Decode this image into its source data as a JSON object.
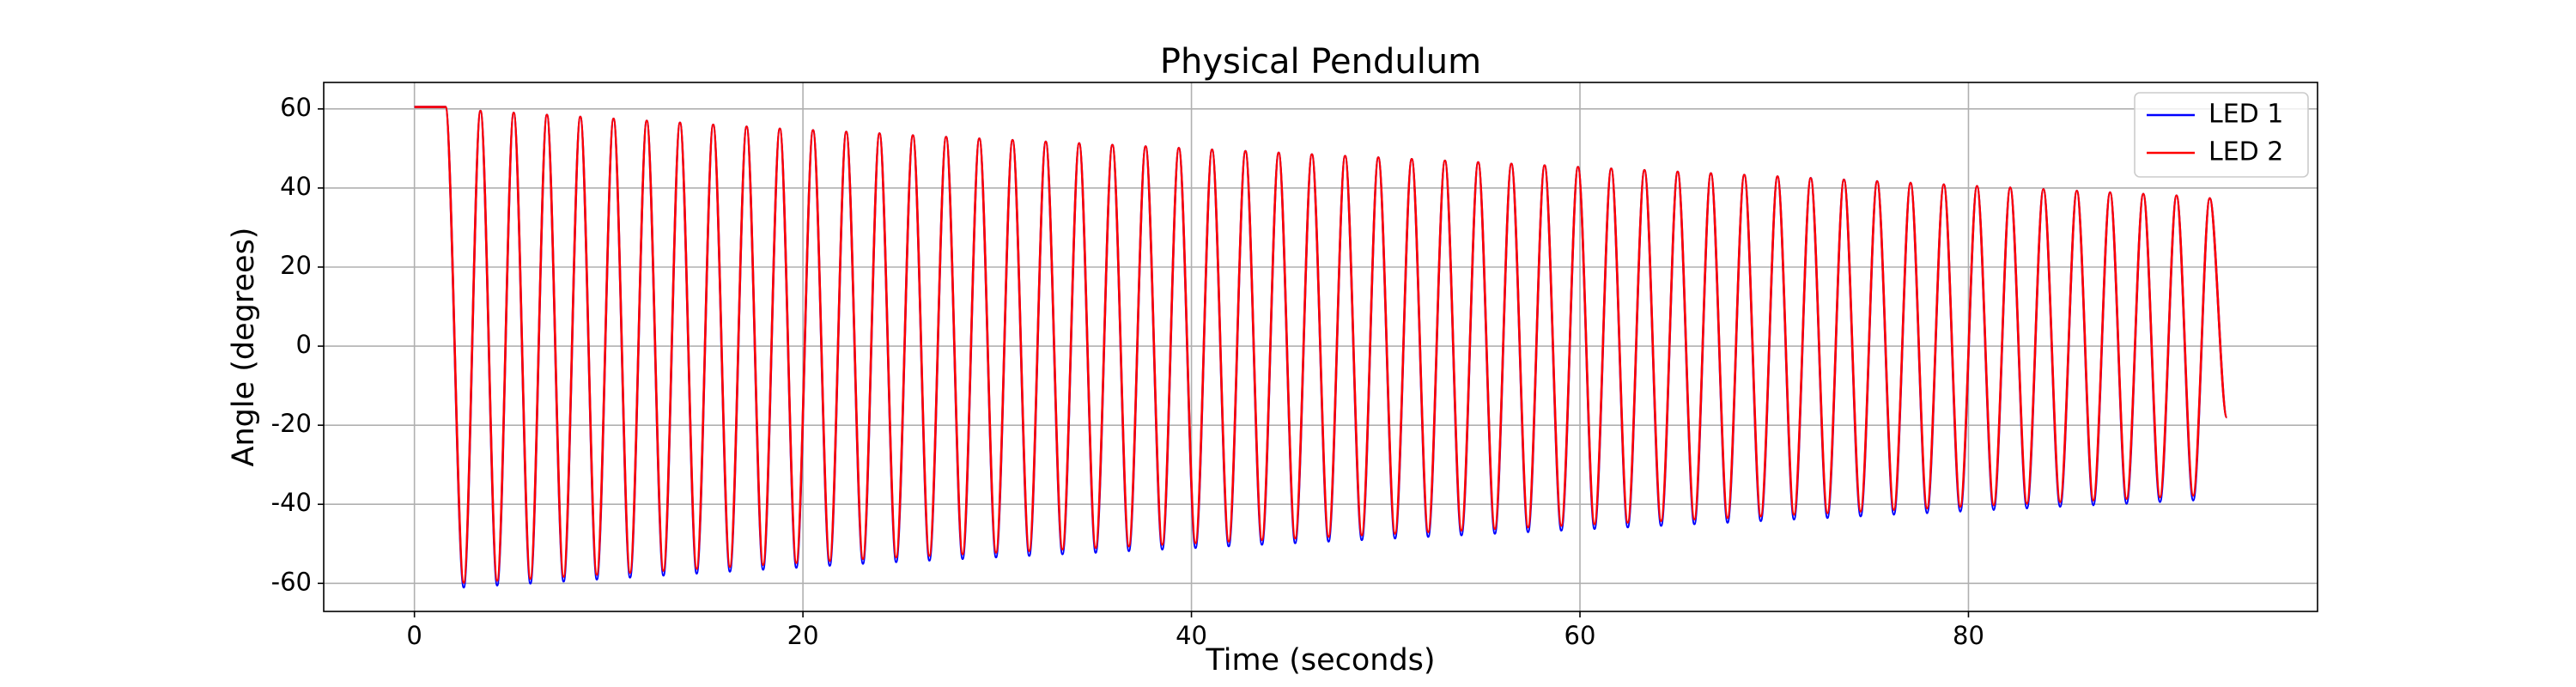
{
  "chart_data": {
    "type": "line",
    "title": "Physical Pendulum",
    "x_label": "Time (seconds)",
    "y_label": "Angle (degrees)",
    "x": [
      0,
      1.6,
      2.54,
      3.4,
      4.26,
      5.11,
      5.97,
      6.82,
      7.68,
      8.54,
      9.39,
      10.25,
      11.1,
      11.96,
      12.82,
      13.67,
      14.53,
      15.38,
      16.24,
      17.1,
      17.95,
      18.81,
      19.66,
      20.52,
      21.38,
      22.23,
      23.09,
      23.94,
      24.8,
      25.66,
      26.51,
      27.37,
      28.22,
      29.08,
      29.94,
      30.79,
      31.65,
      32.5,
      33.36,
      34.22,
      35.07,
      35.93,
      36.78,
      37.64,
      38.5,
      39.35,
      40.21,
      41.06,
      41.92,
      42.78,
      43.63,
      44.49,
      45.34,
      46.2,
      47.06,
      47.91,
      48.77,
      49.62,
      50.48,
      51.34,
      52.19,
      53.05,
      53.9,
      54.76,
      55.62,
      56.47,
      57.33,
      58.18,
      59.04,
      59.9,
      60.75,
      61.61,
      62.46,
      63.32,
      64.18,
      65.03,
      65.89,
      66.74,
      67.6,
      68.46,
      69.31,
      70.17,
      71.02,
      71.88,
      72.74,
      73.59,
      74.45,
      75.3,
      76.16,
      77.02,
      77.87,
      78.73,
      79.58,
      80.44,
      81.3,
      82.15,
      83.01,
      83.86,
      84.72,
      85.58,
      86.43,
      87.29,
      88.14,
      89.0,
      89.86,
      90.71,
      91.57,
      92.42,
      93.3
    ],
    "series": [
      {
        "name": "LED 1",
        "color": "#0000ff",
        "values": [
          60.5,
          60.5,
          -61.0,
          59.5,
          -60.5,
          59.0,
          -60.0,
          58.5,
          -59.5,
          58.0,
          -59.0,
          57.5,
          -58.5,
          57.0,
          -58.0,
          56.5,
          -57.5,
          56.0,
          -57.0,
          55.5,
          -56.5,
          55.0,
          -56.0,
          54.6,
          -55.5,
          54.2,
          -55.0,
          53.8,
          -54.6,
          53.3,
          -54.2,
          52.9,
          -53.8,
          52.5,
          -53.4,
          52.1,
          -53.0,
          51.7,
          -52.6,
          51.3,
          -52.2,
          50.9,
          -51.8,
          50.5,
          -51.4,
          50.1,
          -51.0,
          49.7,
          -50.6,
          49.3,
          -50.2,
          48.9,
          -49.8,
          48.5,
          -49.4,
          48.1,
          -49.0,
          47.7,
          -48.6,
          47.3,
          -48.2,
          46.9,
          -47.8,
          46.5,
          -47.4,
          46.1,
          -47.0,
          45.7,
          -46.6,
          45.3,
          -46.2,
          44.9,
          -45.8,
          44.5,
          -45.4,
          44.1,
          -45.0,
          43.7,
          -44.6,
          43.3,
          -44.2,
          42.9,
          -43.8,
          42.5,
          -43.4,
          42.1,
          -43.0,
          41.7,
          -42.6,
          41.3,
          -42.2,
          40.9,
          -41.8,
          40.5,
          -41.4,
          40.1,
          -41.0,
          39.7,
          -40.6,
          39.3,
          -40.2,
          38.9,
          -39.8,
          38.5,
          -39.4,
          38.1,
          -39.0,
          37.4,
          -18
        ]
      },
      {
        "name": "LED 2",
        "color": "#ff0000",
        "values": [
          60.5,
          60.5,
          -59.8,
          59.5,
          -59.3,
          59.0,
          -58.8,
          58.5,
          -58.3,
          58.0,
          -57.8,
          57.5,
          -57.3,
          57.0,
          -56.8,
          56.5,
          -56.3,
          56.0,
          -55.8,
          55.5,
          -55.3,
          55.0,
          -54.8,
          54.6,
          -54.3,
          54.2,
          -53.8,
          53.8,
          -53.4,
          53.3,
          -53.0,
          52.9,
          -52.6,
          52.5,
          -52.2,
          52.1,
          -51.8,
          51.7,
          -51.4,
          51.3,
          -51.0,
          50.9,
          -50.6,
          50.5,
          -50.2,
          50.1,
          -49.8,
          49.7,
          -49.4,
          49.3,
          -49.0,
          48.9,
          -48.6,
          48.5,
          -48.2,
          48.1,
          -47.8,
          47.7,
          -47.4,
          47.3,
          -47.0,
          46.9,
          -46.6,
          46.5,
          -46.2,
          46.1,
          -45.8,
          45.7,
          -45.4,
          45.3,
          -45.0,
          44.9,
          -44.6,
          44.5,
          -44.2,
          44.1,
          -43.8,
          43.7,
          -43.4,
          43.3,
          -43.0,
          42.9,
          -42.6,
          42.5,
          -42.2,
          42.1,
          -41.8,
          41.7,
          -41.4,
          41.3,
          -41.0,
          40.9,
          -40.6,
          40.5,
          -40.2,
          40.1,
          -39.8,
          39.7,
          -39.4,
          39.3,
          -39.0,
          38.9,
          -38.6,
          38.5,
          -38.2,
          38.1,
          -37.8,
          37.4,
          -18
        ]
      }
    ],
    "xlim": [
      -4.67,
      97.97
    ],
    "xticks": [
      0,
      20,
      40,
      60,
      80
    ],
    "ylim": [
      -67.1,
      66.7
    ],
    "yticks": [
      -60,
      -40,
      -20,
      0,
      20,
      40,
      60
    ],
    "grid": true,
    "legend": "upper right"
  }
}
